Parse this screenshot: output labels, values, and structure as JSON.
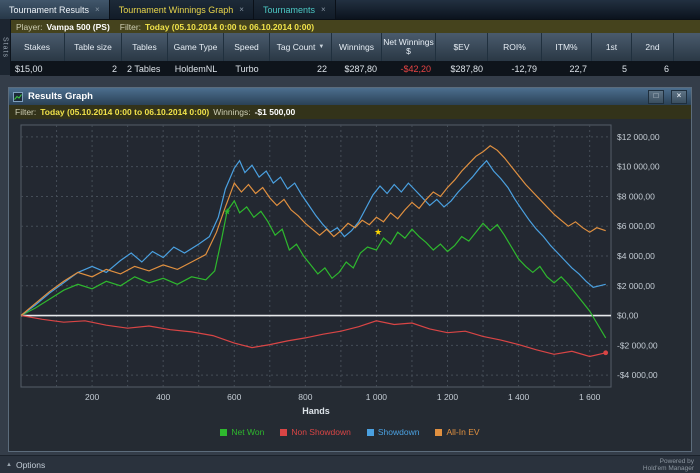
{
  "window": {
    "tabs": [
      {
        "label": "Tournament Results"
      },
      {
        "label": "Tournament Winnings Graph"
      },
      {
        "label": "Tournaments"
      }
    ]
  },
  "icons": {
    "tab_close": "×",
    "sort_desc": "▼",
    "window_restore": "□",
    "window_close": "×",
    "options_arrow": "▲"
  },
  "player_bar": {
    "player_label": "Player:",
    "player_value": "Vampa 500 (PS)",
    "filter_label": "Filter:",
    "filter_value": "Today (05.10.2014 0:00 to 06.10.2014 0:00)"
  },
  "side_tab": {
    "label": "Stats"
  },
  "table": {
    "columns": [
      "Stakes",
      "Table size",
      "Tables",
      "Game Type",
      "Speed",
      "Tag Count",
      "Winnings",
      "Net Winnings $",
      "$EV",
      "ROI%",
      "ITM%",
      "1st",
      "2nd"
    ],
    "row": [
      "$15,00",
      "2",
      "2 Tables",
      "HoldemNL",
      "Turbo",
      "22",
      "$287,80",
      "-$42,20",
      "$287,80",
      "-12,79",
      "22,7",
      "5",
      "6"
    ]
  },
  "panel": {
    "title": "Results Graph",
    "filter_label": "Filter:",
    "filter_value": "Today (05.10.2014 0:00 to 06.10.2014 0:00)",
    "winnings_label": "Winnings:",
    "winnings_value": "-$1 500,00"
  },
  "bottom_bar": {
    "options_label": "Options",
    "powered_line1": "Powered by",
    "powered_line2": "Hold'em Manager"
  },
  "chart_data": {
    "type": "line",
    "title": "Results Graph",
    "xlabel": "Hands",
    "xlim": [
      0,
      1660
    ],
    "ylim": [
      -4800,
      12800
    ],
    "grid": true,
    "legend_position": "bottom",
    "plot_bg": "#232831",
    "zero_line": 0,
    "x_ticks": [
      {
        "v": 200,
        "label": "200"
      },
      {
        "v": 400,
        "label": "400"
      },
      {
        "v": 600,
        "label": "600"
      },
      {
        "v": 800,
        "label": "800"
      },
      {
        "v": 1000,
        "label": "1 000"
      },
      {
        "v": 1200,
        "label": "1 200"
      },
      {
        "v": 1400,
        "label": "1 400"
      },
      {
        "v": 1600,
        "label": "1 600"
      }
    ],
    "y_ticks": [
      {
        "v": 12000,
        "label": "$12 000,00"
      },
      {
        "v": 10000,
        "label": "$10 000,00"
      },
      {
        "v": 8000,
        "label": "$8 000,00"
      },
      {
        "v": 6000,
        "label": "$6 000,00"
      },
      {
        "v": 4000,
        "label": "$4 000,00"
      },
      {
        "v": 2000,
        "label": "$2 000,00"
      },
      {
        "v": 0,
        "label": "$0,00"
      },
      {
        "v": -2000,
        "label": "-$2 000,00"
      },
      {
        "v": -4000,
        "label": "-$4 000,00"
      }
    ],
    "series": [
      {
        "name": "Net Won",
        "color": "#2eb82e",
        "points": [
          [
            0,
            0
          ],
          [
            40,
            500
          ],
          [
            80,
            1100
          ],
          [
            120,
            1700
          ],
          [
            160,
            2100
          ],
          [
            200,
            1800
          ],
          [
            240,
            2300
          ],
          [
            280,
            2000
          ],
          [
            320,
            2600
          ],
          [
            360,
            2200
          ],
          [
            400,
            2500
          ],
          [
            440,
            2100
          ],
          [
            480,
            2600
          ],
          [
            520,
            2400
          ],
          [
            545,
            3000
          ],
          [
            565,
            5200
          ],
          [
            580,
            7000
          ],
          [
            600,
            7700
          ],
          [
            615,
            6900
          ],
          [
            635,
            7300
          ],
          [
            655,
            6600
          ],
          [
            675,
            7000
          ],
          [
            695,
            6300
          ],
          [
            715,
            5400
          ],
          [
            735,
            5800
          ],
          [
            755,
            4400
          ],
          [
            775,
            4800
          ],
          [
            795,
            4000
          ],
          [
            815,
            3400
          ],
          [
            835,
            2800
          ],
          [
            855,
            3200
          ],
          [
            875,
            2500
          ],
          [
            895,
            2900
          ],
          [
            915,
            3600
          ],
          [
            935,
            3200
          ],
          [
            955,
            4200
          ],
          [
            975,
            4600
          ],
          [
            1000,
            4400
          ],
          [
            1020,
            5200
          ],
          [
            1040,
            4800
          ],
          [
            1060,
            5600
          ],
          [
            1080,
            5200
          ],
          [
            1100,
            5800
          ],
          [
            1120,
            5300
          ],
          [
            1140,
            4900
          ],
          [
            1160,
            4400
          ],
          [
            1180,
            4800
          ],
          [
            1200,
            4300
          ],
          [
            1220,
            4700
          ],
          [
            1240,
            5300
          ],
          [
            1260,
            5000
          ],
          [
            1280,
            5600
          ],
          [
            1300,
            6200
          ],
          [
            1320,
            5700
          ],
          [
            1340,
            6100
          ],
          [
            1360,
            5400
          ],
          [
            1380,
            4600
          ],
          [
            1400,
            3800
          ],
          [
            1420,
            3300
          ],
          [
            1440,
            2900
          ],
          [
            1460,
            3300
          ],
          [
            1480,
            2600
          ],
          [
            1500,
            2200
          ],
          [
            1520,
            2600
          ],
          [
            1540,
            2100
          ],
          [
            1560,
            1500
          ],
          [
            1580,
            900
          ],
          [
            1600,
            300
          ],
          [
            1620,
            -500
          ],
          [
            1645,
            -1500
          ]
        ]
      },
      {
        "name": "Non Showdown",
        "color": "#d94545",
        "points": [
          [
            0,
            0
          ],
          [
            60,
            -250
          ],
          [
            120,
            -450
          ],
          [
            180,
            -350
          ],
          [
            240,
            -650
          ],
          [
            300,
            -850
          ],
          [
            360,
            -700
          ],
          [
            420,
            -950
          ],
          [
            480,
            -1100
          ],
          [
            540,
            -1350
          ],
          [
            600,
            -1850
          ],
          [
            650,
            -2150
          ],
          [
            700,
            -1950
          ],
          [
            750,
            -1700
          ],
          [
            800,
            -1500
          ],
          [
            850,
            -1250
          ],
          [
            900,
            -1050
          ],
          [
            950,
            -750
          ],
          [
            1000,
            -350
          ],
          [
            1050,
            -600
          ],
          [
            1100,
            -500
          ],
          [
            1150,
            -900
          ],
          [
            1200,
            -1150
          ],
          [
            1250,
            -1050
          ],
          [
            1300,
            -1400
          ],
          [
            1350,
            -1650
          ],
          [
            1400,
            -1950
          ],
          [
            1450,
            -2300
          ],
          [
            1500,
            -2600
          ],
          [
            1550,
            -2400
          ],
          [
            1600,
            -2750
          ],
          [
            1645,
            -2500
          ]
        ]
      },
      {
        "name": "Showdown",
        "color": "#4aa0e0",
        "points": [
          [
            0,
            0
          ],
          [
            40,
            700
          ],
          [
            80,
            1500
          ],
          [
            120,
            2200
          ],
          [
            160,
            2900
          ],
          [
            200,
            3300
          ],
          [
            240,
            2900
          ],
          [
            280,
            3700
          ],
          [
            310,
            4200
          ],
          [
            340,
            3600
          ],
          [
            370,
            4300
          ],
          [
            400,
            3900
          ],
          [
            430,
            4600
          ],
          [
            460,
            4200
          ],
          [
            500,
            4800
          ],
          [
            530,
            5300
          ],
          [
            555,
            6600
          ],
          [
            575,
            8500
          ],
          [
            600,
            9900
          ],
          [
            615,
            10400
          ],
          [
            630,
            9600
          ],
          [
            650,
            10100
          ],
          [
            670,
            9300
          ],
          [
            690,
            9700
          ],
          [
            710,
            8900
          ],
          [
            730,
            9300
          ],
          [
            750,
            8500
          ],
          [
            770,
            8900
          ],
          [
            790,
            8100
          ],
          [
            810,
            7400
          ],
          [
            830,
            6700
          ],
          [
            850,
            6100
          ],
          [
            870,
            5600
          ],
          [
            890,
            5900
          ],
          [
            910,
            5300
          ],
          [
            930,
            5700
          ],
          [
            950,
            6300
          ],
          [
            970,
            7200
          ],
          [
            990,
            8100
          ],
          [
            1010,
            8700
          ],
          [
            1030,
            8200
          ],
          [
            1050,
            8800
          ],
          [
            1070,
            8300
          ],
          [
            1090,
            8900
          ],
          [
            1110,
            8400
          ],
          [
            1130,
            7900
          ],
          [
            1150,
            7400
          ],
          [
            1170,
            7800
          ],
          [
            1190,
            7300
          ],
          [
            1210,
            7700
          ],
          [
            1230,
            8300
          ],
          [
            1250,
            8800
          ],
          [
            1270,
            9300
          ],
          [
            1290,
            9900
          ],
          [
            1310,
            10400
          ],
          [
            1330,
            9700
          ],
          [
            1350,
            9200
          ],
          [
            1370,
            8600
          ],
          [
            1390,
            7800
          ],
          [
            1410,
            7100
          ],
          [
            1430,
            6400
          ],
          [
            1450,
            5800
          ],
          [
            1470,
            5300
          ],
          [
            1490,
            4700
          ],
          [
            1510,
            4200
          ],
          [
            1530,
            3700
          ],
          [
            1550,
            3200
          ],
          [
            1570,
            2800
          ],
          [
            1590,
            2300
          ],
          [
            1610,
            1900
          ],
          [
            1645,
            2100
          ]
        ]
      },
      {
        "name": "All-In EV",
        "color": "#e09040",
        "points": [
          [
            0,
            0
          ],
          [
            40,
            800
          ],
          [
            80,
            1600
          ],
          [
            120,
            2300
          ],
          [
            160,
            2900
          ],
          [
            200,
            2600
          ],
          [
            240,
            3100
          ],
          [
            280,
            2800
          ],
          [
            320,
            3300
          ],
          [
            360,
            3000
          ],
          [
            400,
            3400
          ],
          [
            440,
            3100
          ],
          [
            480,
            3600
          ],
          [
            520,
            4100
          ],
          [
            550,
            5600
          ],
          [
            575,
            7300
          ],
          [
            600,
            8900
          ],
          [
            620,
            8300
          ],
          [
            640,
            8800
          ],
          [
            660,
            8200
          ],
          [
            680,
            8600
          ],
          [
            700,
            7900
          ],
          [
            720,
            7400
          ],
          [
            740,
            7800
          ],
          [
            760,
            7100
          ],
          [
            780,
            6700
          ],
          [
            800,
            6200
          ],
          [
            820,
            5800
          ],
          [
            840,
            5400
          ],
          [
            860,
            5800
          ],
          [
            880,
            5300
          ],
          [
            900,
            5700
          ],
          [
            920,
            6200
          ],
          [
            940,
            5900
          ],
          [
            960,
            6400
          ],
          [
            980,
            6100
          ],
          [
            1000,
            6600
          ],
          [
            1020,
            6300
          ],
          [
            1040,
            6900
          ],
          [
            1060,
            6500
          ],
          [
            1080,
            7100
          ],
          [
            1100,
            7600
          ],
          [
            1120,
            7200
          ],
          [
            1140,
            7800
          ],
          [
            1160,
            8300
          ],
          [
            1180,
            8000
          ],
          [
            1200,
            8600
          ],
          [
            1220,
            9100
          ],
          [
            1240,
            9700
          ],
          [
            1260,
            10200
          ],
          [
            1280,
            10700
          ],
          [
            1300,
            11000
          ],
          [
            1320,
            11400
          ],
          [
            1340,
            11100
          ],
          [
            1360,
            10600
          ],
          [
            1380,
            10000
          ],
          [
            1400,
            9400
          ],
          [
            1420,
            8800
          ],
          [
            1440,
            8300
          ],
          [
            1460,
            7800
          ],
          [
            1480,
            7300
          ],
          [
            1500,
            6800
          ],
          [
            1520,
            6400
          ],
          [
            1540,
            6000
          ],
          [
            1560,
            6300
          ],
          [
            1580,
            5900
          ],
          [
            1600,
            5600
          ],
          [
            1620,
            5900
          ],
          [
            1645,
            5700
          ]
        ]
      }
    ],
    "markers": [
      {
        "x": 580,
        "y": 7000,
        "color": "#2eb82e",
        "shape": "star"
      },
      {
        "x": 1005,
        "y": 5600,
        "color": "#ffd800",
        "shape": "star"
      },
      {
        "x": 1645,
        "y": -2500,
        "color": "#d94545",
        "shape": "dot"
      }
    ]
  }
}
